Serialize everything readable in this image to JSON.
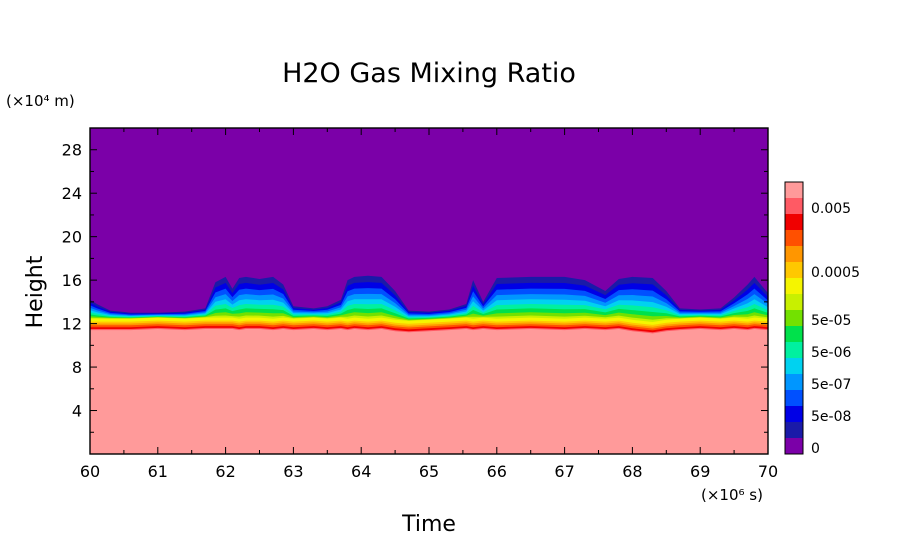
{
  "chart_data": {
    "type": "heatmap",
    "title": "H2O Gas Mixing Ratio",
    "xlabel": "Time",
    "ylabel": "Height",
    "x_unit": "(×10⁶ s)",
    "y_unit": "(×10⁴ m)",
    "xlim": [
      60,
      70
    ],
    "ylim": [
      0,
      30
    ],
    "x_ticks": [
      "60",
      "61",
      "62",
      "63",
      "64",
      "65",
      "66",
      "67",
      "68",
      "69",
      "70"
    ],
    "y_ticks": [
      "4",
      "8",
      "12",
      "16",
      "20",
      "24",
      "28"
    ],
    "colorbar": {
      "levels": [
        {
          "color": "#7b00a8",
          "label": "0"
        },
        {
          "color": "#1a1aa8",
          "label": ""
        },
        {
          "color": "#0000e6",
          "label": "5e-08"
        },
        {
          "color": "#0050ff",
          "label": ""
        },
        {
          "color": "#0096ff",
          "label": "5e-07"
        },
        {
          "color": "#00d2f0",
          "label": ""
        },
        {
          "color": "#00f0a0",
          "label": "5e-06"
        },
        {
          "color": "#00e14b",
          "label": ""
        },
        {
          "color": "#73e100",
          "label": "5e-05"
        },
        {
          "color": "#c8f000",
          "label": ""
        },
        {
          "color": "#f5f500",
          "label": ""
        },
        {
          "color": "#ffc800",
          "label": "0.0005"
        },
        {
          "color": "#ff9600",
          "label": ""
        },
        {
          "color": "#ff5000",
          "label": ""
        },
        {
          "color": "#f00000",
          "label": ""
        },
        {
          "color": "#ff5a64",
          "label": "0.005"
        },
        {
          "color": "#ff9a9a",
          "label": ""
        }
      ]
    },
    "profile": {
      "x": [
        60.0,
        60.1,
        60.3,
        60.6,
        61.0,
        61.4,
        61.7,
        61.85,
        62.0,
        62.1,
        62.2,
        62.3,
        62.5,
        62.7,
        62.85,
        63.0,
        63.3,
        63.5,
        63.7,
        63.8,
        63.9,
        64.1,
        64.3,
        64.5,
        64.7,
        65.0,
        65.3,
        65.55,
        65.65,
        65.8,
        66.0,
        66.5,
        67.0,
        67.3,
        67.6,
        67.8,
        68.0,
        68.3,
        68.5,
        68.7,
        69.0,
        69.3,
        69.5,
        69.7,
        69.8,
        70.0
      ],
      "top": [
        14.2,
        13.8,
        13.2,
        13.0,
        13.0,
        13.1,
        13.4,
        15.8,
        16.3,
        15.2,
        16.2,
        16.3,
        16.1,
        16.3,
        15.6,
        13.6,
        13.4,
        13.6,
        14.2,
        16.0,
        16.3,
        16.4,
        16.3,
        15.0,
        13.2,
        13.1,
        13.3,
        13.8,
        16.0,
        14.0,
        16.2,
        16.3,
        16.3,
        16.0,
        15.0,
        16.1,
        16.3,
        16.2,
        15.0,
        13.4,
        13.3,
        13.4,
        14.4,
        15.6,
        16.3,
        14.8
      ],
      "base": [
        11.4,
        11.4,
        11.4,
        11.4,
        11.5,
        11.4,
        11.5,
        11.5,
        11.5,
        11.5,
        11.4,
        11.5,
        11.5,
        11.4,
        11.5,
        11.4,
        11.5,
        11.4,
        11.5,
        11.4,
        11.5,
        11.4,
        11.5,
        11.3,
        11.2,
        11.3,
        11.4,
        11.5,
        11.4,
        11.5,
        11.4,
        11.5,
        11.4,
        11.5,
        11.4,
        11.5,
        11.3,
        11.1,
        11.3,
        11.4,
        11.5,
        11.4,
        11.5,
        11.4,
        11.5,
        11.4
      ]
    }
  }
}
